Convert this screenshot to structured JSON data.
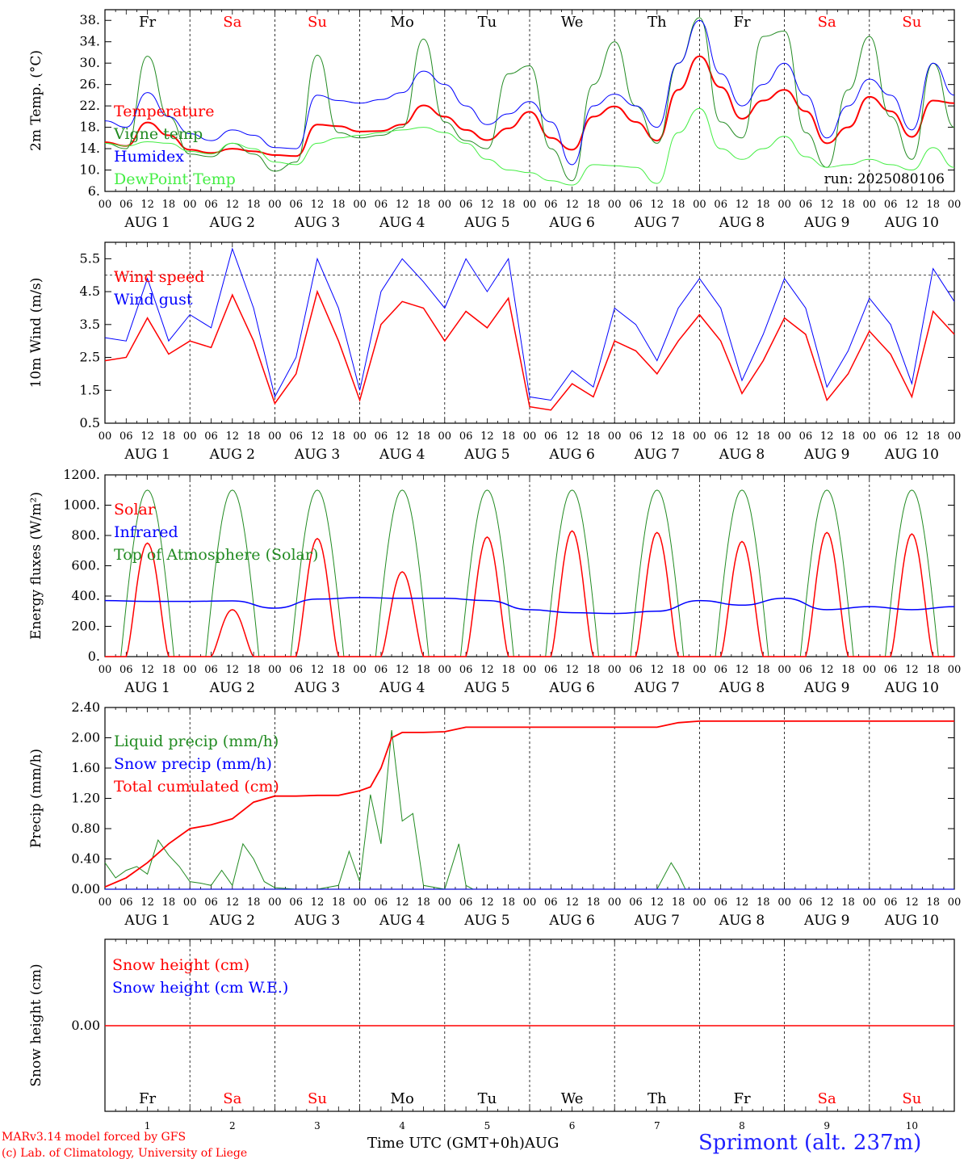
{
  "chart_data": [
    {
      "type": "line",
      "ylabel": "2m Temp. (°C)",
      "ylim": [
        6,
        40
      ],
      "yticks": [
        "6.",
        "10.",
        "14.",
        "18.",
        "22.",
        "26.",
        "30.",
        "34.",
        "38."
      ],
      "run_label": "run: 2025080106",
      "hour_labels": [
        "00",
        "06",
        "12",
        "18"
      ],
      "date_labels": [
        "AUG  1",
        "AUG  2",
        "AUG  3",
        "AUG  4",
        "AUG  5",
        "AUG  6",
        "AUG  7",
        "AUG  8",
        "AUG  9",
        "AUG 10"
      ],
      "day_names": [
        {
          "name": "Fr",
          "color": "#000000"
        },
        {
          "name": "Sa",
          "color": "#ff0000"
        },
        {
          "name": "Su",
          "color": "#ff0000"
        },
        {
          "name": "Mo",
          "color": "#000000"
        },
        {
          "name": "Tu",
          "color": "#000000"
        },
        {
          "name": "We",
          "color": "#000000"
        },
        {
          "name": "Th",
          "color": "#000000"
        },
        {
          "name": "Fr",
          "color": "#000000"
        },
        {
          "name": "Sa",
          "color": "#ff0000"
        },
        {
          "name": "Su",
          "color": "#ff0000"
        }
      ],
      "x_hours": [
        0,
        6,
        12,
        18,
        24,
        30,
        36,
        42,
        48,
        54,
        60,
        66,
        72,
        78,
        84,
        90,
        96,
        102,
        108,
        114,
        120,
        126,
        132,
        138,
        144,
        150,
        156,
        162,
        168,
        174,
        180,
        186,
        192,
        198,
        204,
        210,
        216,
        222,
        228,
        234,
        240
      ],
      "series": [
        {
          "name": "Temperature",
          "color": "#ff0000",
          "values": [
            15.2,
            14.5,
            18.9,
            16.5,
            13.8,
            13.2,
            14.0,
            13.5,
            12.8,
            12.6,
            18.5,
            18.2,
            17.2,
            17.3,
            18.5,
            22.1,
            20.0,
            17.5,
            15.6,
            17.8,
            20.9,
            16.0,
            13.8,
            20.0,
            21.9,
            19.0,
            15.5,
            25.0,
            31.3,
            25.5,
            19.6,
            23.0,
            25.0,
            21.0,
            15.0,
            18.0,
            23.7,
            21.0,
            16.2,
            23.0,
            22.5
          ]
        },
        {
          "name": "Vigne temp",
          "color": "#228b22",
          "values": [
            15.0,
            14.0,
            31.3,
            20.0,
            13.0,
            12.5,
            15.0,
            13.0,
            9.8,
            11.5,
            31.5,
            17.0,
            16.0,
            16.5,
            18.0,
            34.5,
            19.0,
            15.5,
            14.0,
            28.0,
            29.5,
            14.0,
            8.0,
            26.0,
            34.0,
            22.0,
            15.0,
            30.0,
            38.5,
            19.0,
            16.0,
            35.0,
            36.0,
            17.0,
            10.5,
            25.0,
            35.0,
            20.0,
            12.0,
            30.0,
            18.0
          ]
        },
        {
          "name": "Humidex",
          "color": "#0000ff",
          "values": [
            19.2,
            18.0,
            24.5,
            20.0,
            16.8,
            15.5,
            17.5,
            16.5,
            14.2,
            14.0,
            24.0,
            23.0,
            22.5,
            23.2,
            24.5,
            28.5,
            26.0,
            22.0,
            18.5,
            20.5,
            22.8,
            19.0,
            11.0,
            22.0,
            24.2,
            22.0,
            18.0,
            30.0,
            38.0,
            28.0,
            22.0,
            26.0,
            30.0,
            24.0,
            16.0,
            22.0,
            27.0,
            24.0,
            17.5,
            30.0,
            24.0
          ]
        },
        {
          "name": "DewPoint Temp",
          "color": "#44ee44",
          "values": [
            15.0,
            14.5,
            15.3,
            15.0,
            13.5,
            13.0,
            15.0,
            14.0,
            11.5,
            11.0,
            15.0,
            16.0,
            16.5,
            17.0,
            17.5,
            18.0,
            17.0,
            15.0,
            12.0,
            10.0,
            9.5,
            8.0,
            7.2,
            11.0,
            10.8,
            10.5,
            7.5,
            17.0,
            21.5,
            14.0,
            12.0,
            14.0,
            16.3,
            12.5,
            10.5,
            11.0,
            12.0,
            11.0,
            10.0,
            14.2,
            10.5
          ]
        }
      ]
    },
    {
      "type": "line",
      "ylabel": "10m Wind (m/s)",
      "ylim": [
        0.5,
        6.0
      ],
      "yticks": [
        "0.5",
        "1.5",
        "2.5",
        "3.5",
        "4.5",
        "5.5"
      ],
      "reference_line": 5,
      "x_hours": [
        0,
        6,
        12,
        18,
        24,
        30,
        36,
        42,
        48,
        54,
        60,
        66,
        72,
        78,
        84,
        90,
        96,
        102,
        108,
        114,
        120,
        126,
        132,
        138,
        144,
        150,
        156,
        162,
        168,
        174,
        180,
        186,
        192,
        198,
        204,
        210,
        216,
        222,
        228,
        234,
        240
      ],
      "series": [
        {
          "name": "Wind speed",
          "color": "#ff0000",
          "values": [
            2.4,
            2.5,
            3.7,
            2.6,
            3.0,
            2.8,
            4.4,
            3.0,
            1.1,
            2.0,
            4.5,
            3.0,
            1.2,
            3.5,
            4.2,
            4.0,
            3.0,
            3.9,
            3.4,
            4.3,
            1.0,
            0.9,
            1.7,
            1.3,
            3.0,
            2.7,
            2.0,
            3.0,
            3.8,
            3.0,
            1.4,
            2.4,
            3.7,
            3.2,
            1.2,
            2.0,
            3.3,
            2.6,
            1.3,
            3.9,
            3.2
          ]
        },
        {
          "name": "Wind gust",
          "color": "#0000ff",
          "values": [
            3.1,
            3.0,
            4.9,
            3.0,
            3.8,
            3.4,
            5.8,
            4.0,
            1.3,
            2.5,
            5.5,
            4.0,
            1.5,
            4.5,
            5.5,
            4.8,
            4.0,
            5.5,
            4.5,
            5.5,
            1.3,
            1.2,
            2.1,
            1.6,
            4.0,
            3.5,
            2.4,
            4.0,
            4.9,
            4.0,
            1.8,
            3.2,
            4.9,
            4.0,
            1.6,
            2.7,
            4.3,
            3.5,
            1.7,
            5.2,
            4.2
          ]
        }
      ]
    },
    {
      "type": "line",
      "ylabel": "Energy fluxes (W/m²)",
      "ylim": [
        0,
        1200
      ],
      "yticks": [
        "0.",
        "200.",
        "400.",
        "600.",
        "800.",
        "1000.",
        "1200."
      ],
      "series": [
        {
          "name": "Solar",
          "color": "#ff0000",
          "daily_peaks": [
            750,
            310,
            780,
            560,
            790,
            830,
            820,
            760,
            820,
            810
          ]
        },
        {
          "name": "Infrared",
          "color": "#0000ff",
          "x_hours": [
            0,
            12,
            24,
            36,
            48,
            60,
            72,
            84,
            96,
            108,
            120,
            132,
            144,
            156,
            168,
            180,
            192,
            204,
            216,
            228,
            240
          ],
          "values": [
            370,
            365,
            365,
            368,
            320,
            380,
            390,
            385,
            385,
            370,
            310,
            290,
            285,
            300,
            370,
            340,
            385,
            310,
            330,
            310,
            330
          ]
        },
        {
          "name": "Top of Atmosphere (Solar)",
          "color": "#228b22",
          "daily_peak": 1100
        }
      ]
    },
    {
      "type": "line",
      "ylabel": "Precip (mm/h)",
      "ylim": [
        0,
        2.4
      ],
      "yticks": [
        "0.00",
        "0.40",
        "0.80",
        "1.20",
        "1.60",
        "2.00",
        "2.40"
      ],
      "series": [
        {
          "name": "Liquid precip (mm/h)",
          "color": "#228b22",
          "x_hours": [
            0,
            3,
            6,
            9,
            12,
            15,
            18,
            21,
            24,
            27,
            30,
            33,
            36,
            39,
            42,
            45,
            48,
            54,
            60,
            66,
            69,
            72,
            75,
            78,
            81,
            84,
            87,
            90,
            96,
            100,
            102,
            104,
            108,
            120,
            156,
            160,
            162,
            164,
            168
          ],
          "values": [
            0.35,
            0.15,
            0.25,
            0.3,
            0.2,
            0.65,
            0.45,
            0.3,
            0.1,
            0.08,
            0.05,
            0.25,
            0.05,
            0.6,
            0.4,
            0.1,
            0.02,
            0.0,
            0.0,
            0.05,
            0.5,
            0.1,
            1.25,
            0.6,
            2.1,
            0.9,
            1.0,
            0.05,
            0.0,
            0.6,
            0.05,
            0.0,
            0.0,
            0.0,
            0.0,
            0.35,
            0.2,
            0.0,
            0.0
          ]
        },
        {
          "name": "Snow precip (mm/h)",
          "color": "#0000ff",
          "x_hours": [
            0,
            240
          ],
          "values": [
            0,
            0
          ]
        },
        {
          "name": "Total cumulated (cm)",
          "color": "#ff0000",
          "x_hours": [
            0,
            6,
            12,
            18,
            24,
            30,
            36,
            42,
            48,
            54,
            60,
            66,
            72,
            75,
            78,
            81,
            84,
            90,
            96,
            100,
            102,
            108,
            120,
            156,
            162,
            168,
            240
          ],
          "values": [
            0.03,
            0.15,
            0.35,
            0.6,
            0.8,
            0.85,
            0.93,
            1.15,
            1.23,
            1.23,
            1.24,
            1.24,
            1.3,
            1.35,
            1.6,
            2.0,
            2.07,
            2.07,
            2.08,
            2.12,
            2.14,
            2.14,
            2.14,
            2.14,
            2.2,
            2.22,
            2.22
          ]
        }
      ]
    },
    {
      "type": "line",
      "ylabel": "Snow height (cm)",
      "ytick": "0.00",
      "series": [
        {
          "name": "Snow height (cm)",
          "color": "#ff0000",
          "values": [
            0,
            0
          ]
        },
        {
          "name": "Snow height (cm W.E.)",
          "color": "#0000ff",
          "values": [
            0,
            0
          ]
        }
      ],
      "bottom_day_names": [
        "Fr",
        "Sa",
        "Su",
        "Mo",
        "Tu",
        "We",
        "Th",
        "Fr",
        "Sa",
        "Su"
      ],
      "bottom_day_numbers": [
        "1",
        "2",
        "3",
        "4",
        "5",
        "6",
        "7",
        "8",
        "9",
        "10"
      ]
    }
  ],
  "footer": {
    "credit_line1": "MARv3.14 model forced by GFS",
    "credit_line2": "(c) Lab. of Climatology, University of Liege",
    "xaxis_title": "Time UTC (GMT+0h)AUG",
    "station": "Sprimont (alt. 237m)"
  }
}
